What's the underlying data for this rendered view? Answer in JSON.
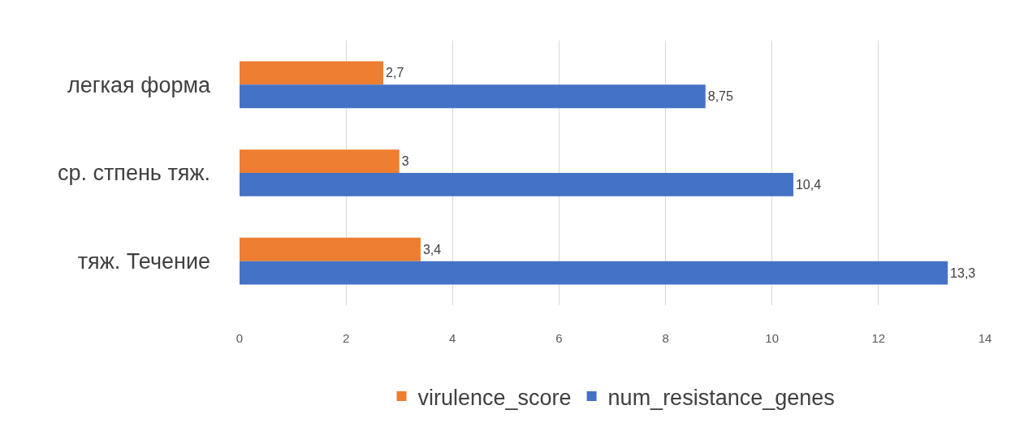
{
  "chart_data": {
    "type": "bar",
    "orientation": "horizontal",
    "categories": [
      "легкая форма",
      "ср. стпень тяж.",
      "тяж. Течение"
    ],
    "series": [
      {
        "name": "virulence_score",
        "color": "#ed7d31",
        "values": [
          2.7,
          3,
          3.4
        ],
        "value_labels": [
          "2,7",
          "3",
          "3,4"
        ]
      },
      {
        "name": "num_resistance_genes",
        "color": "#4472c4",
        "values": [
          8.75,
          10.4,
          13.3
        ],
        "value_labels": [
          "8,75",
          "10,4",
          "13,3"
        ]
      }
    ],
    "xlim": [
      0,
      14
    ],
    "xticks": [
      0,
      2,
      4,
      6,
      8,
      10,
      12,
      14
    ],
    "grid": "x",
    "legend": "bottom"
  }
}
